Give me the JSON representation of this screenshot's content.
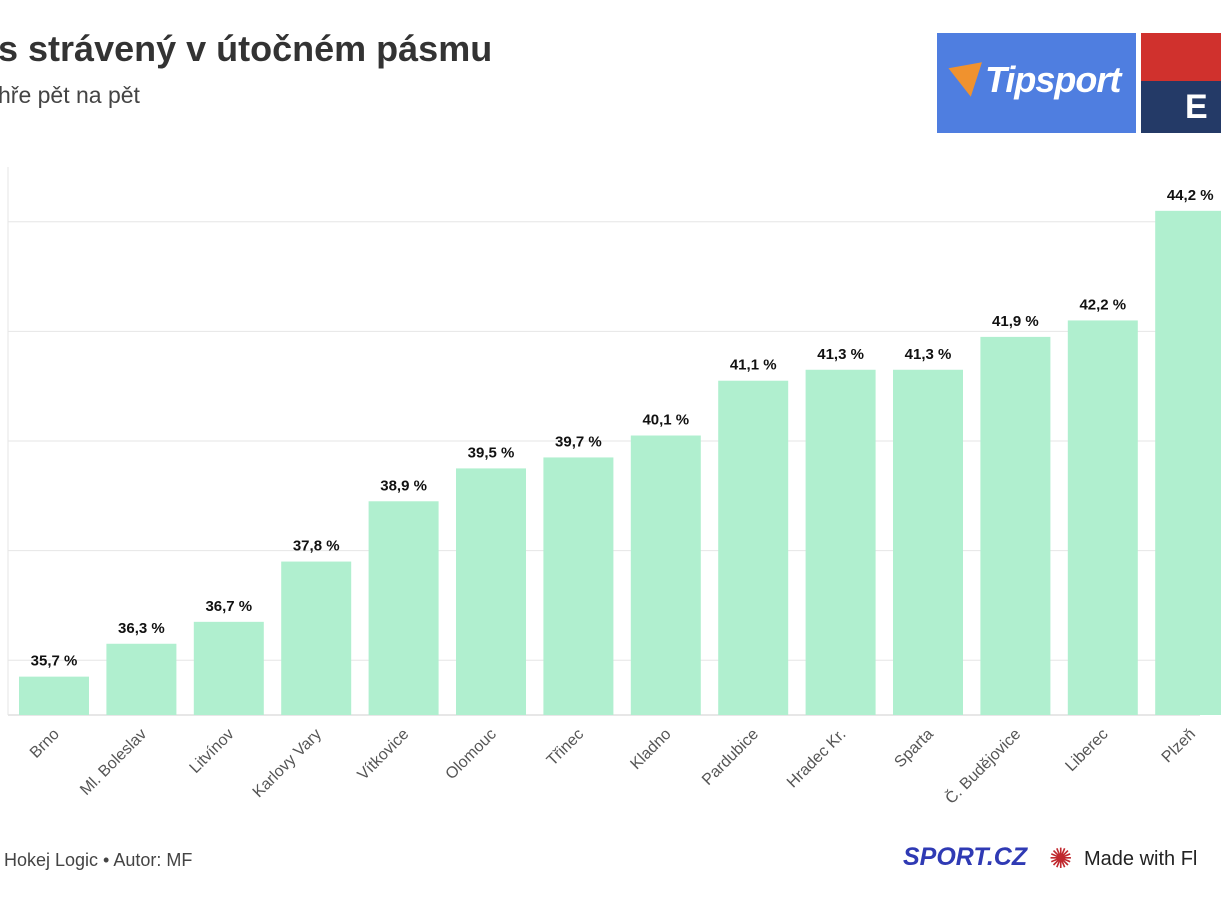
{
  "header": {
    "title": "s strávený v útočném pásmu",
    "subtitle": "hře pět na pět"
  },
  "logos": {
    "sponsor": "Tipsport",
    "league_letter": "E"
  },
  "footer": {
    "source": "Hokej Logic • Autor: MF",
    "brand": "SPORT.CZ",
    "made_with": "Made with Fl"
  },
  "colors": {
    "bar": "#b0efcf",
    "grid": "#e6e6e6",
    "label": "#111111"
  },
  "chart_data": {
    "type": "bar",
    "categories": [
      "Brno",
      "Ml. Boleslav",
      "Litvínov",
      "Karlovy Vary",
      "Vítkovice",
      "Olomouc",
      "Třinec",
      "Kladno",
      "Pardubice",
      "Hradec Kr.",
      "Sparta",
      "Č. Budějovice",
      "Liberec",
      "Plzeň"
    ],
    "values": [
      35.7,
      36.3,
      36.7,
      37.8,
      38.9,
      39.5,
      39.7,
      40.1,
      41.1,
      41.3,
      41.3,
      41.9,
      42.2,
      44.2
    ],
    "data_labels": [
      "35,7 %",
      "36,3 %",
      "36,7 %",
      "37,8 %",
      "38,9 %",
      "39,5 %",
      "39,7 %",
      "40,1 %",
      "41,1 %",
      "41,3 %",
      "41,3 %",
      "41,9 %",
      "42,2 %",
      "44,2 %"
    ],
    "ylim": [
      35,
      45
    ],
    "gridlines": [
      36,
      38,
      40,
      42,
      44
    ],
    "grid": true
  }
}
